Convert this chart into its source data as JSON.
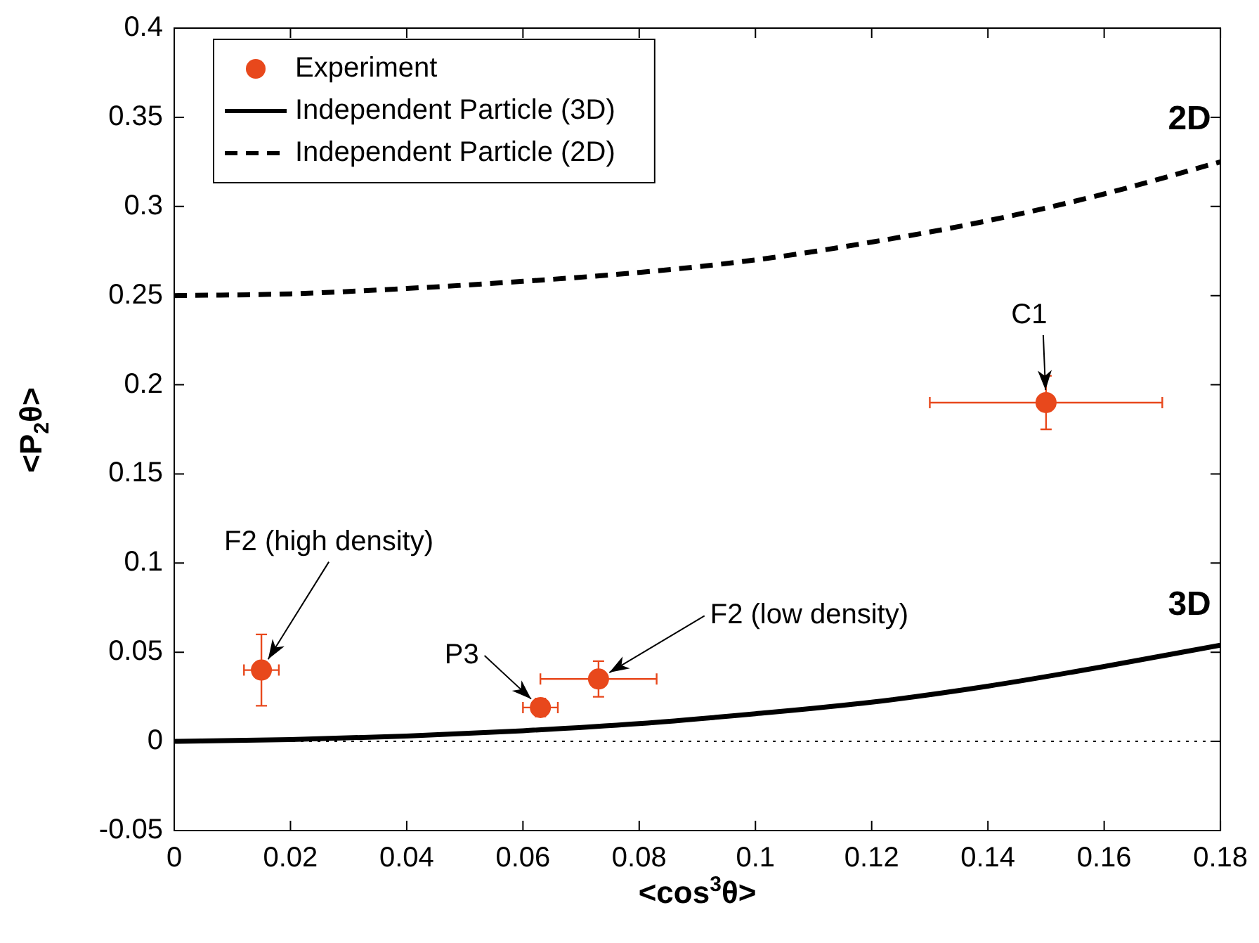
{
  "chart_data": {
    "type": "scatter",
    "xlabel": "<cos$^{3}$θ>",
    "ylabel": "<P$_{2}$θ>",
    "xlim": [
      0,
      0.18
    ],
    "xticks": [
      0,
      0.02,
      0.04,
      0.06,
      0.08,
      0.1,
      0.12,
      0.14,
      0.16,
      0.18
    ],
    "ylim": [
      -0.05,
      0.4
    ],
    "yticks": [
      -0.05,
      0,
      0.05,
      0.1,
      0.15,
      0.2,
      0.25,
      0.3,
      0.35,
      0.4
    ],
    "grid": false,
    "legend": "top left",
    "series": [
      {
        "name": "Experiment",
        "type": "scatter",
        "color": "#e8481c",
        "marker": "circle",
        "x": [
          0.015,
          0.063,
          0.073,
          0.15
        ],
        "values": [
          0.04,
          0.019,
          0.035,
          0.19
        ],
        "errors": [
          0.02,
          0.005,
          0.01,
          0.015
        ],
        "xerrors": [
          0.003,
          0.003,
          0.01,
          0.02
        ]
      },
      {
        "name": "Independent Particle (3D)",
        "type": "line",
        "color": "#000000",
        "marker": "none",
        "line_style": "solid",
        "x": [
          0,
          0.02,
          0.04,
          0.06,
          0.08,
          0.1,
          0.12,
          0.14,
          0.16,
          0.18
        ],
        "values": [
          0,
          0.001,
          0.003,
          0.006,
          0.01,
          0.0155,
          0.022,
          0.031,
          0.042,
          0.054
        ]
      },
      {
        "name": "Independent Particle (2D)",
        "type": "line",
        "color": "#000000",
        "marker": "none",
        "line_style": "dashed",
        "x": [
          0,
          0.02,
          0.04,
          0.06,
          0.08,
          0.1,
          0.12,
          0.14,
          0.16,
          0.18
        ],
        "values": [
          0.25,
          0.251,
          0.254,
          0.258,
          0.263,
          0.27,
          0.28,
          0.292,
          0.307,
          0.325
        ]
      }
    ],
    "ref_lines": [
      {
        "axis": "y",
        "value": 0,
        "color": "#000000",
        "line_style": "dotted"
      }
    ],
    "annotations": [
      {
        "text": "C1",
        "x": 0.15,
        "y": 0.19
      },
      {
        "text": "F2 (high density)",
        "x": 0.015,
        "y": 0.04
      },
      {
        "text": "P3",
        "x": 0.063,
        "y": 0.019
      },
      {
        "text": "F2 (low density)",
        "x": 0.073,
        "y": 0.035
      },
      {
        "text": "2D",
        "x": 0.18,
        "y": 0.325
      },
      {
        "text": "3D",
        "x": 0.18,
        "y": 0.054
      }
    ]
  }
}
